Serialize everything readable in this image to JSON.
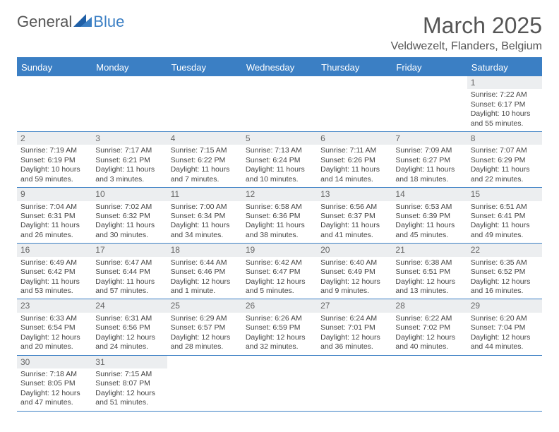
{
  "logo": {
    "text1": "General",
    "text2": "Blue"
  },
  "title": "March 2025",
  "location": "Veldwezelt, Flanders, Belgium",
  "colors": {
    "header_bg": "#3b7fc4",
    "header_text": "#ffffff",
    "row_stripe": "#eceef0",
    "border": "#3b7fc4",
    "text": "#444444",
    "title_text": "#555555"
  },
  "day_labels": [
    "Sunday",
    "Monday",
    "Tuesday",
    "Wednesday",
    "Thursday",
    "Friday",
    "Saturday"
  ],
  "weeks": [
    [
      null,
      null,
      null,
      null,
      null,
      null,
      {
        "d": "1",
        "sr": "Sunrise: 7:22 AM",
        "ss": "Sunset: 6:17 PM",
        "dl1": "Daylight: 10 hours",
        "dl2": "and 55 minutes."
      }
    ],
    [
      {
        "d": "2",
        "sr": "Sunrise: 7:19 AM",
        "ss": "Sunset: 6:19 PM",
        "dl1": "Daylight: 10 hours",
        "dl2": "and 59 minutes."
      },
      {
        "d": "3",
        "sr": "Sunrise: 7:17 AM",
        "ss": "Sunset: 6:21 PM",
        "dl1": "Daylight: 11 hours",
        "dl2": "and 3 minutes."
      },
      {
        "d": "4",
        "sr": "Sunrise: 7:15 AM",
        "ss": "Sunset: 6:22 PM",
        "dl1": "Daylight: 11 hours",
        "dl2": "and 7 minutes."
      },
      {
        "d": "5",
        "sr": "Sunrise: 7:13 AM",
        "ss": "Sunset: 6:24 PM",
        "dl1": "Daylight: 11 hours",
        "dl2": "and 10 minutes."
      },
      {
        "d": "6",
        "sr": "Sunrise: 7:11 AM",
        "ss": "Sunset: 6:26 PM",
        "dl1": "Daylight: 11 hours",
        "dl2": "and 14 minutes."
      },
      {
        "d": "7",
        "sr": "Sunrise: 7:09 AM",
        "ss": "Sunset: 6:27 PM",
        "dl1": "Daylight: 11 hours",
        "dl2": "and 18 minutes."
      },
      {
        "d": "8",
        "sr": "Sunrise: 7:07 AM",
        "ss": "Sunset: 6:29 PM",
        "dl1": "Daylight: 11 hours",
        "dl2": "and 22 minutes."
      }
    ],
    [
      {
        "d": "9",
        "sr": "Sunrise: 7:04 AM",
        "ss": "Sunset: 6:31 PM",
        "dl1": "Daylight: 11 hours",
        "dl2": "and 26 minutes."
      },
      {
        "d": "10",
        "sr": "Sunrise: 7:02 AM",
        "ss": "Sunset: 6:32 PM",
        "dl1": "Daylight: 11 hours",
        "dl2": "and 30 minutes."
      },
      {
        "d": "11",
        "sr": "Sunrise: 7:00 AM",
        "ss": "Sunset: 6:34 PM",
        "dl1": "Daylight: 11 hours",
        "dl2": "and 34 minutes."
      },
      {
        "d": "12",
        "sr": "Sunrise: 6:58 AM",
        "ss": "Sunset: 6:36 PM",
        "dl1": "Daylight: 11 hours",
        "dl2": "and 38 minutes."
      },
      {
        "d": "13",
        "sr": "Sunrise: 6:56 AM",
        "ss": "Sunset: 6:37 PM",
        "dl1": "Daylight: 11 hours",
        "dl2": "and 41 minutes."
      },
      {
        "d": "14",
        "sr": "Sunrise: 6:53 AM",
        "ss": "Sunset: 6:39 PM",
        "dl1": "Daylight: 11 hours",
        "dl2": "and 45 minutes."
      },
      {
        "d": "15",
        "sr": "Sunrise: 6:51 AM",
        "ss": "Sunset: 6:41 PM",
        "dl1": "Daylight: 11 hours",
        "dl2": "and 49 minutes."
      }
    ],
    [
      {
        "d": "16",
        "sr": "Sunrise: 6:49 AM",
        "ss": "Sunset: 6:42 PM",
        "dl1": "Daylight: 11 hours",
        "dl2": "and 53 minutes."
      },
      {
        "d": "17",
        "sr": "Sunrise: 6:47 AM",
        "ss": "Sunset: 6:44 PM",
        "dl1": "Daylight: 11 hours",
        "dl2": "and 57 minutes."
      },
      {
        "d": "18",
        "sr": "Sunrise: 6:44 AM",
        "ss": "Sunset: 6:46 PM",
        "dl1": "Daylight: 12 hours",
        "dl2": "and 1 minute."
      },
      {
        "d": "19",
        "sr": "Sunrise: 6:42 AM",
        "ss": "Sunset: 6:47 PM",
        "dl1": "Daylight: 12 hours",
        "dl2": "and 5 minutes."
      },
      {
        "d": "20",
        "sr": "Sunrise: 6:40 AM",
        "ss": "Sunset: 6:49 PM",
        "dl1": "Daylight: 12 hours",
        "dl2": "and 9 minutes."
      },
      {
        "d": "21",
        "sr": "Sunrise: 6:38 AM",
        "ss": "Sunset: 6:51 PM",
        "dl1": "Daylight: 12 hours",
        "dl2": "and 13 minutes."
      },
      {
        "d": "22",
        "sr": "Sunrise: 6:35 AM",
        "ss": "Sunset: 6:52 PM",
        "dl1": "Daylight: 12 hours",
        "dl2": "and 16 minutes."
      }
    ],
    [
      {
        "d": "23",
        "sr": "Sunrise: 6:33 AM",
        "ss": "Sunset: 6:54 PM",
        "dl1": "Daylight: 12 hours",
        "dl2": "and 20 minutes."
      },
      {
        "d": "24",
        "sr": "Sunrise: 6:31 AM",
        "ss": "Sunset: 6:56 PM",
        "dl1": "Daylight: 12 hours",
        "dl2": "and 24 minutes."
      },
      {
        "d": "25",
        "sr": "Sunrise: 6:29 AM",
        "ss": "Sunset: 6:57 PM",
        "dl1": "Daylight: 12 hours",
        "dl2": "and 28 minutes."
      },
      {
        "d": "26",
        "sr": "Sunrise: 6:26 AM",
        "ss": "Sunset: 6:59 PM",
        "dl1": "Daylight: 12 hours",
        "dl2": "and 32 minutes."
      },
      {
        "d": "27",
        "sr": "Sunrise: 6:24 AM",
        "ss": "Sunset: 7:01 PM",
        "dl1": "Daylight: 12 hours",
        "dl2": "and 36 minutes."
      },
      {
        "d": "28",
        "sr": "Sunrise: 6:22 AM",
        "ss": "Sunset: 7:02 PM",
        "dl1": "Daylight: 12 hours",
        "dl2": "and 40 minutes."
      },
      {
        "d": "29",
        "sr": "Sunrise: 6:20 AM",
        "ss": "Sunset: 7:04 PM",
        "dl1": "Daylight: 12 hours",
        "dl2": "and 44 minutes."
      }
    ],
    [
      {
        "d": "30",
        "sr": "Sunrise: 7:18 AM",
        "ss": "Sunset: 8:05 PM",
        "dl1": "Daylight: 12 hours",
        "dl2": "and 47 minutes."
      },
      {
        "d": "31",
        "sr": "Sunrise: 7:15 AM",
        "ss": "Sunset: 8:07 PM",
        "dl1": "Daylight: 12 hours",
        "dl2": "and 51 minutes."
      },
      null,
      null,
      null,
      null,
      null
    ]
  ]
}
